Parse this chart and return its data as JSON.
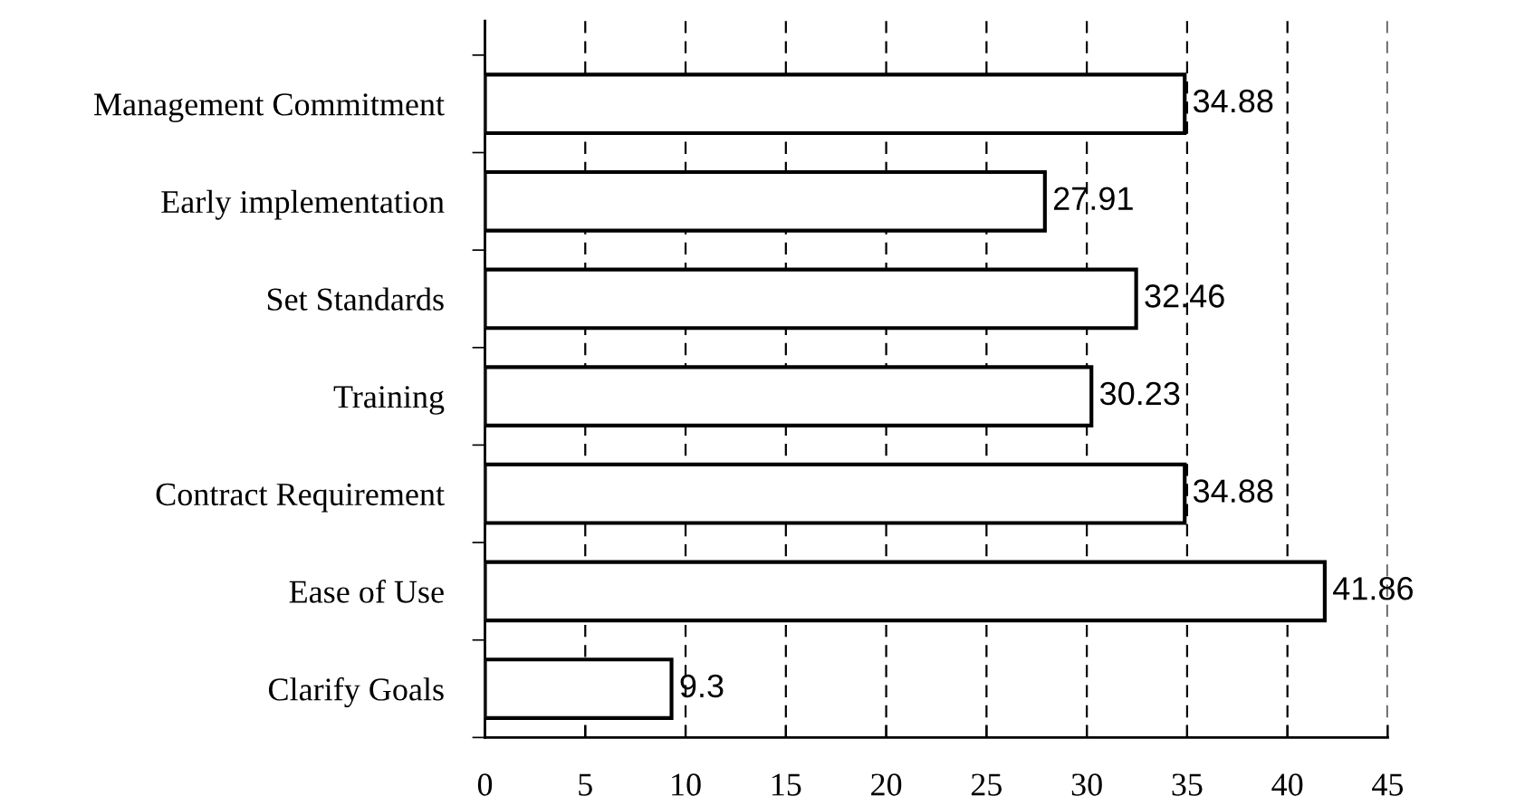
{
  "chart_data": {
    "type": "bar",
    "orientation": "horizontal",
    "categories": [
      "Management Commitment",
      "Early implementation",
      "Set Standards",
      "Training",
      "Contract Requirement",
      "Ease of Use",
      "Clarify Goals"
    ],
    "values": [
      34.88,
      27.91,
      32.46,
      30.23,
      34.88,
      41.86,
      9.3
    ],
    "color": "#ffffff",
    "xlim": [
      0,
      45
    ],
    "xticks": [
      0,
      5,
      10,
      15,
      20,
      25,
      30,
      35,
      40,
      45
    ],
    "grid": "x",
    "data_labels": true,
    "legend": false
  }
}
